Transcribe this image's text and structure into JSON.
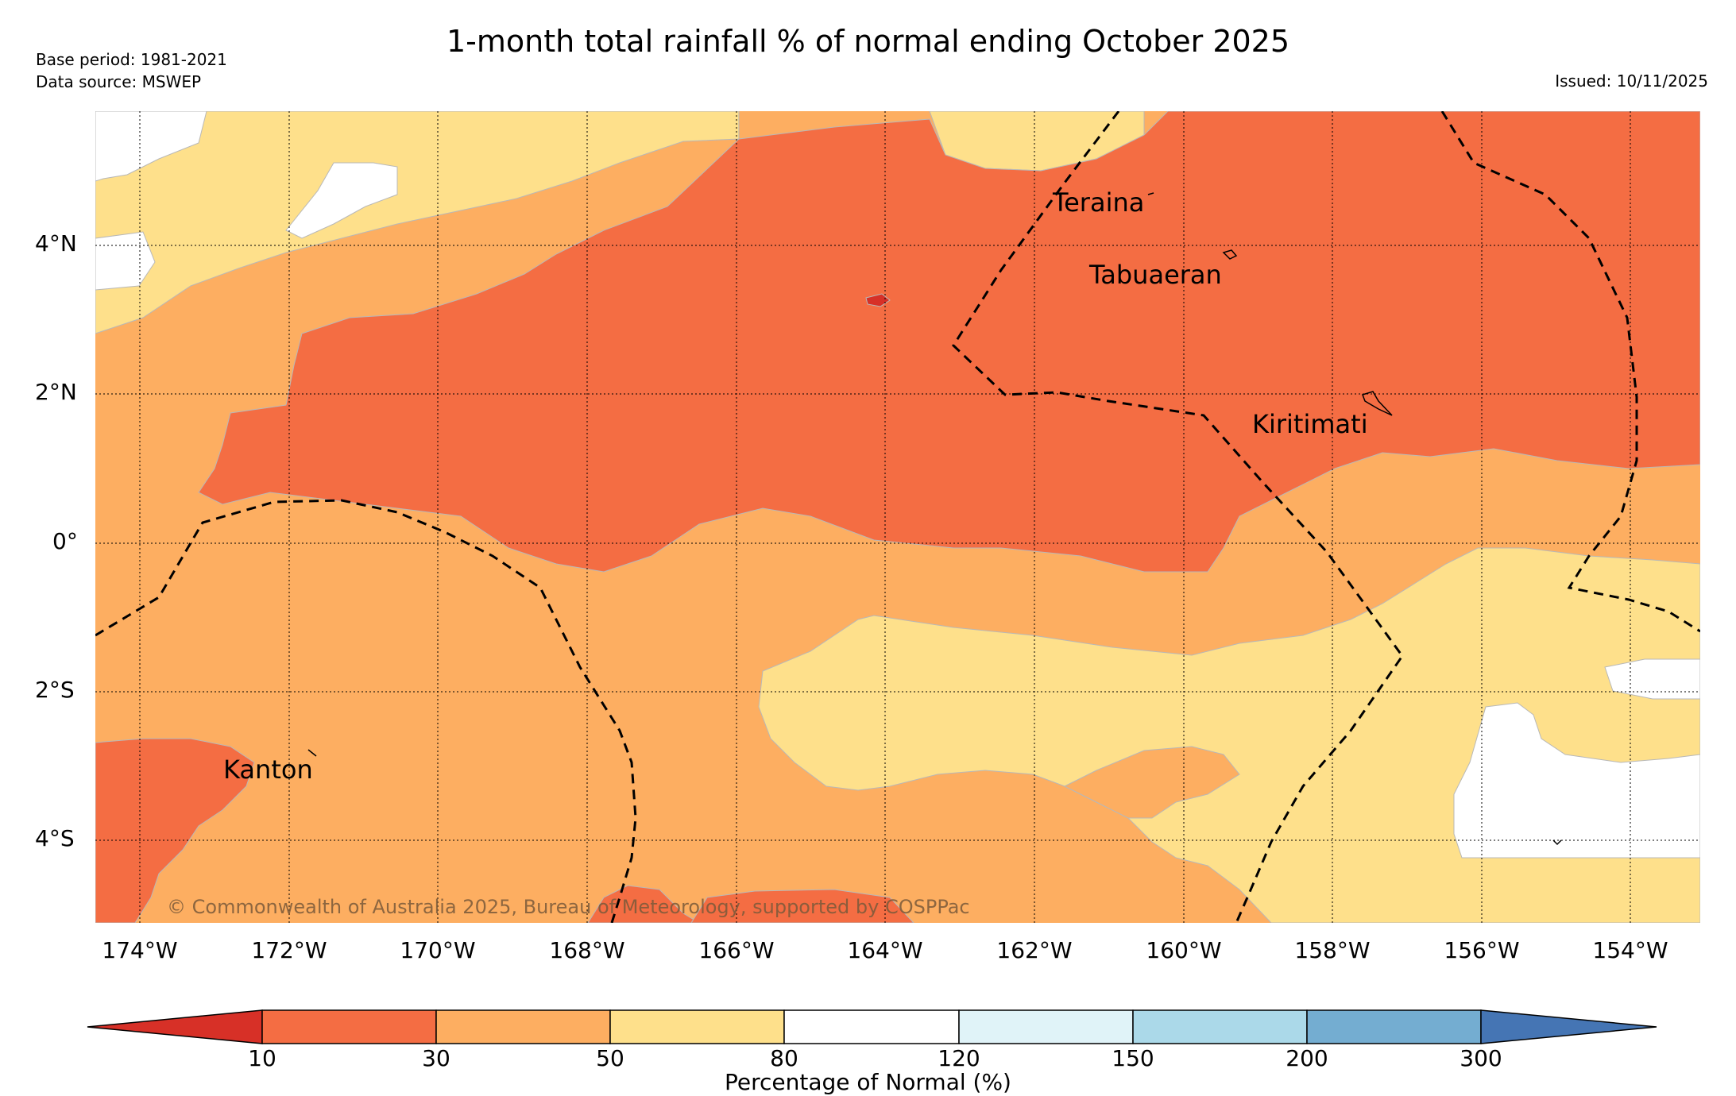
{
  "title": "1-month total rainfall % of normal ending October 2025",
  "base_period": "Base period: 1981-2021",
  "data_source": "Data source: MSWEP",
  "issued": "Issued: 10/11/2025",
  "copyright": "© Commonwealth of Australia 2025, Bureau of Meteorology, supported by COSPPac",
  "lat_labels": [
    "4°N",
    "2°N",
    "0°",
    "2°S",
    "4°S"
  ],
  "lon_labels": [
    "174°W",
    "172°W",
    "170°W",
    "168°W",
    "166°W",
    "164°W",
    "162°W",
    "160°W",
    "158°W",
    "156°W",
    "154°W"
  ],
  "places": {
    "teraina": "Teraina",
    "tabuaeran": "Tabuaeran",
    "kiritimati": "Kiritimati",
    "kanton": "Kanton"
  },
  "colorbar": {
    "title": "Percentage of Normal (%)",
    "ticks": [
      "10",
      "30",
      "50",
      "80",
      "120",
      "150",
      "200",
      "300"
    ],
    "colors": [
      "#d73027",
      "#f46d43",
      "#fdae61",
      "#fee08b",
      "#ffffff",
      "#e0f3f8",
      "#abd9e9",
      "#74add1",
      "#4575b4"
    ]
  }
}
